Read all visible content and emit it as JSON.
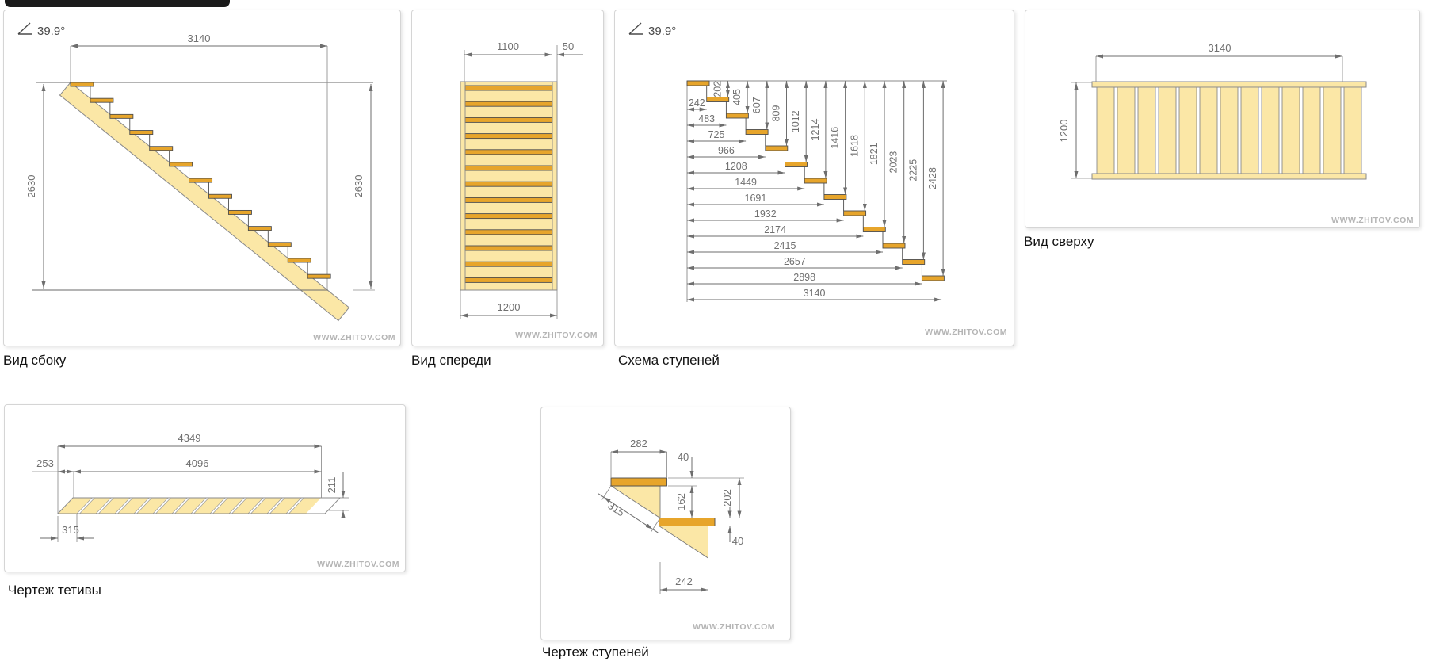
{
  "watermark": "WWW.ZHITOV.COM",
  "panels": {
    "side": {
      "caption": "Вид сбоку",
      "angle": "39.9°",
      "total_run": "3140",
      "height_left": "2630",
      "height_right": "2630",
      "steps": 13
    },
    "front": {
      "caption": "Вид спереди",
      "tread_width": "1100",
      "stringer_width": "50",
      "total_width": "1200",
      "treads": 13
    },
    "scheme": {
      "caption": "Схема ступеней",
      "angle": "39.9°",
      "steps": 13,
      "run_dims": [
        "242",
        "483",
        "725",
        "966",
        "1208",
        "1449",
        "1691",
        "1932",
        "2174",
        "2415",
        "2657",
        "2898",
        "3140"
      ],
      "rise_dims": [
        "202",
        "405",
        "607",
        "809",
        "1012",
        "1214",
        "1416",
        "1618",
        "1821",
        "2023",
        "2225",
        "2428"
      ]
    },
    "top": {
      "caption": "Вид сверху",
      "length": "3140",
      "width": "1200",
      "planks": 13
    },
    "stringer": {
      "caption": "Чертеж тетивы",
      "total_length": "4349",
      "notched_length": "4096",
      "top_offset": "253",
      "board_width": "211",
      "notch_spacing": "315",
      "notches": 13
    },
    "step": {
      "caption": "Чертеж ступеней",
      "tread_depth": "282",
      "tread_thickness": "40",
      "riser_gap": "162",
      "step_rise": "202",
      "lower_tread_thickness": "40",
      "step_run": "242",
      "notch_length": "315"
    }
  },
  "colors": {
    "wood_light": "#FBE7A6",
    "wood_tread": "#E7A52B",
    "dim_line": "#6E6E6E",
    "watermark": "#B5B5B5"
  }
}
